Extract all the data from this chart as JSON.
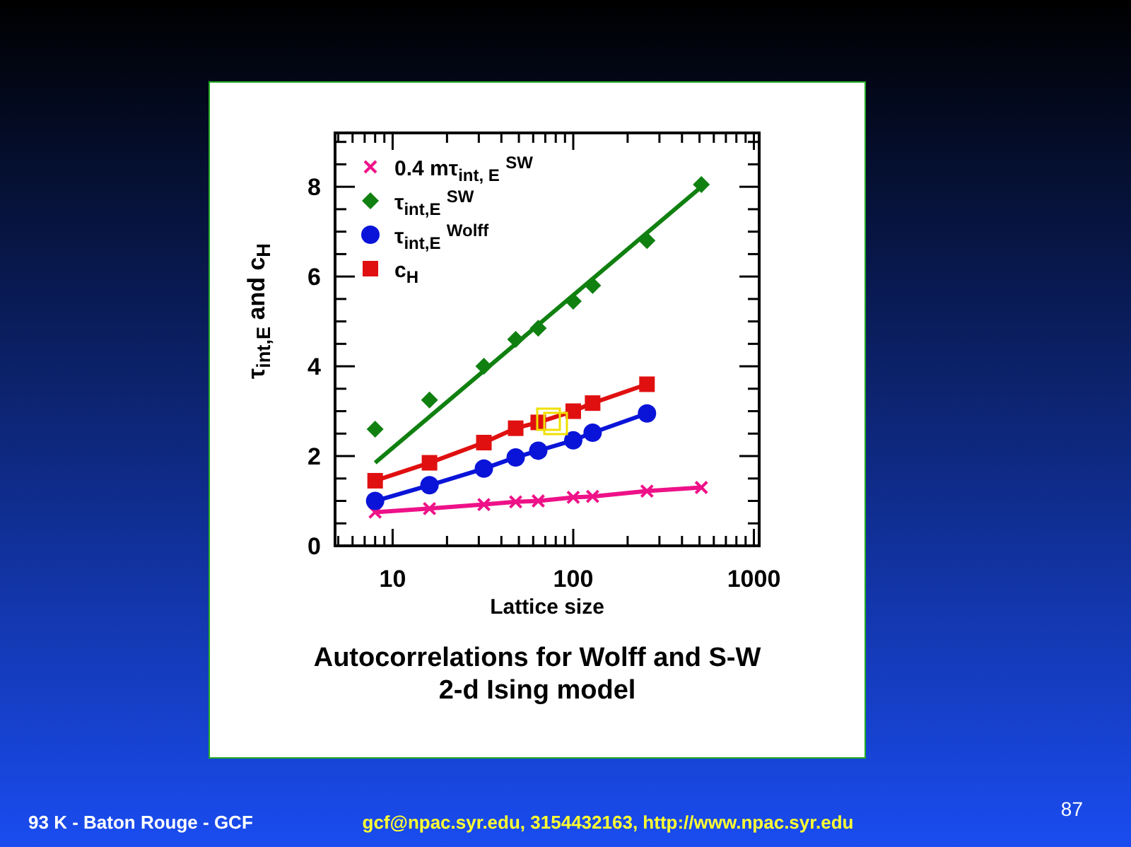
{
  "chart_data": {
    "type": "line",
    "title": "Autocorrelations for Wolff and S-W\n2-d Ising model",
    "xlabel": "Lattice size",
    "ylabel": "τ$_{int,E}$ and c$_{H}$",
    "log": "x",
    "xlim": [
      4.8,
      1070
    ],
    "xticks": [
      10,
      100,
      1000,
      {
        "value": 5,
        "label": null
      },
      {
        "value": 6,
        "label": null
      },
      {
        "value": 7,
        "label": null
      },
      {
        "value": 8,
        "label": null
      },
      {
        "value": 9,
        "label": null
      },
      {
        "value": 20,
        "label": null
      },
      {
        "value": 30,
        "label": null
      },
      {
        "value": 40,
        "label": null
      },
      {
        "value": 50,
        "label": null
      },
      {
        "value": 60,
        "label": null
      },
      {
        "value": 70,
        "label": null
      },
      {
        "value": 80,
        "label": null
      },
      {
        "value": 90,
        "label": null
      },
      {
        "value": 200,
        "label": null
      },
      {
        "value": 300,
        "label": null
      },
      {
        "value": 400,
        "label": null
      },
      {
        "value": 500,
        "label": null
      },
      {
        "value": 600,
        "label": null
      },
      {
        "value": 700,
        "label": null
      },
      {
        "value": 800,
        "label": null
      },
      {
        "value": 900,
        "label": null
      }
    ],
    "ylim": [
      0,
      9.2
    ],
    "yticks": [
      0,
      2,
      4,
      6,
      8,
      {
        "value": 0.5,
        "label": null
      },
      {
        "value": 1,
        "label": null
      },
      {
        "value": 1.5,
        "label": null
      },
      {
        "value": 2.5,
        "label": null
      },
      {
        "value": 3,
        "label": null
      },
      {
        "value": 3.5,
        "label": null
      },
      {
        "value": 4.5,
        "label": null
      },
      {
        "value": 5,
        "label": null
      },
      {
        "value": 5.5,
        "label": null
      },
      {
        "value": 6.5,
        "label": null
      },
      {
        "value": 7,
        "label": null
      },
      {
        "value": 7.5,
        "label": null
      },
      {
        "value": 8.5,
        "label": null
      },
      {
        "value": 9,
        "label": null
      }
    ],
    "grid": false,
    "legend": "top left",
    "series": [
      {
        "name": "0.4 mτ$_{int, E}$ $^{SW}$",
        "marker": "cross",
        "color": "#ee1188",
        "x": [
          8,
          16,
          32,
          48,
          64,
          100,
          128,
          256,
          512
        ],
        "values": [
          0.75,
          0.83,
          0.92,
          0.98,
          1.0,
          1.08,
          1.1,
          1.22,
          1.3
        ]
      },
      {
        "name": "τ$_{int,E}$ $^{SW}$",
        "type": "scatter",
        "marker": "diamond",
        "color": "#108010",
        "x": [
          8,
          16,
          32,
          48,
          64,
          100,
          128,
          256,
          512
        ],
        "values": [
          2.6,
          3.25,
          4.0,
          4.6,
          4.85,
          5.45,
          5.8,
          6.8,
          8.05
        ]
      },
      {
        "name": "τ$_{int,E}$ $^{Wolff}$",
        "marker": "circle",
        "color": "#0a14d8",
        "x": [
          8,
          16,
          32,
          48,
          64,
          100,
          128,
          256
        ],
        "values": [
          1.0,
          1.35,
          1.72,
          1.97,
          2.12,
          2.35,
          2.52,
          2.95
        ]
      },
      {
        "name": "c$_{H}$",
        "marker": "square",
        "color": "#e01010",
        "x": [
          8,
          16,
          32,
          48,
          64,
          100,
          128,
          256
        ],
        "values": [
          1.45,
          1.85,
          2.3,
          2.62,
          2.75,
          3.0,
          3.18,
          3.6
        ]
      },
      {
        "marker": "none",
        "color": "#108010",
        "x": [
          8,
          512
        ],
        "values": [
          1.85,
          8.0
        ]
      }
    ],
    "annotations": [
      "93 K - Baton Rouge - GCF",
      "gcf@npac.syr.edu, 3154432163, http://www.npac.syr.edu",
      "87"
    ]
  }
}
